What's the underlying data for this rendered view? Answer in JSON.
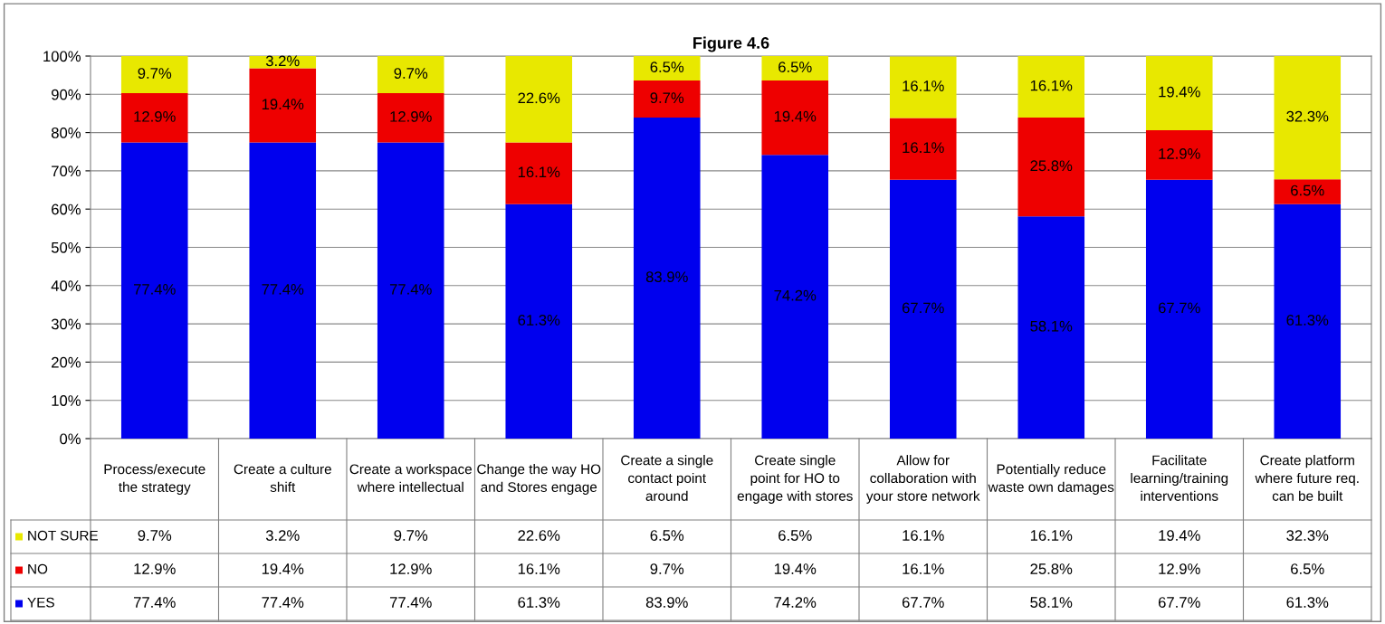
{
  "chart_data": {
    "type": "bar",
    "stacked": true,
    "title": "Figure 4.6",
    "categories": [
      "Process/execute the strategy",
      "Create a culture shift",
      "Create a workspace where intellectual",
      "Change the way HO and Stores engage",
      "Create a single contact point around",
      "Create single point for HO to engage with stores",
      "Allow for collaboration with your store network",
      "Potentially reduce waste own damages",
      "Facilitate learning/training interventions",
      "Create platform where future req. can be built"
    ],
    "series": [
      {
        "name": "YES",
        "color": "#0000ee",
        "values": [
          77.4,
          77.4,
          77.4,
          61.3,
          83.9,
          74.2,
          67.7,
          58.1,
          67.7,
          61.3
        ],
        "value_labels": [
          "77.4%",
          "77.4%",
          "77.4%",
          "61.3%",
          "83.9%",
          "74.2%",
          "67.7%",
          "58.1%",
          "67.7%",
          "61.3%"
        ]
      },
      {
        "name": "NO",
        "color": "#ee0000",
        "values": [
          12.9,
          19.4,
          12.9,
          16.1,
          9.7,
          19.4,
          16.1,
          25.8,
          12.9,
          6.5
        ],
        "value_labels": [
          "12.9%",
          "19.4%",
          "12.9%",
          "16.1%",
          "9.7%",
          "19.4%",
          "16.1%",
          "25.8%",
          "12.9%",
          "6.5%"
        ]
      },
      {
        "name": "NOT SURE",
        "color": "#e8e800",
        "values": [
          9.7,
          3.2,
          9.7,
          22.6,
          6.5,
          6.5,
          16.1,
          16.1,
          19.4,
          32.3
        ],
        "value_labels": [
          "9.7%",
          "3.2%",
          "9.7%",
          "22.6%",
          "6.5%",
          "6.5%",
          "16.1%",
          "16.1%",
          "19.4%",
          "32.3%"
        ]
      }
    ],
    "ylim": [
      0,
      100
    ],
    "yticks": [
      {
        "value": 0,
        "label": "0%"
      },
      {
        "value": 10,
        "label": "10%"
      },
      {
        "value": 20,
        "label": "20%"
      },
      {
        "value": 30,
        "label": "30%"
      },
      {
        "value": 40,
        "label": "40%"
      },
      {
        "value": 50,
        "label": "50%"
      },
      {
        "value": 60,
        "label": "60%"
      },
      {
        "value": 70,
        "label": "70%"
      },
      {
        "value": 80,
        "label": "80%"
      },
      {
        "value": 90,
        "label": "90%"
      },
      {
        "value": 100,
        "label": "100%"
      }
    ],
    "grid": "y",
    "legend": "bottom"
  }
}
